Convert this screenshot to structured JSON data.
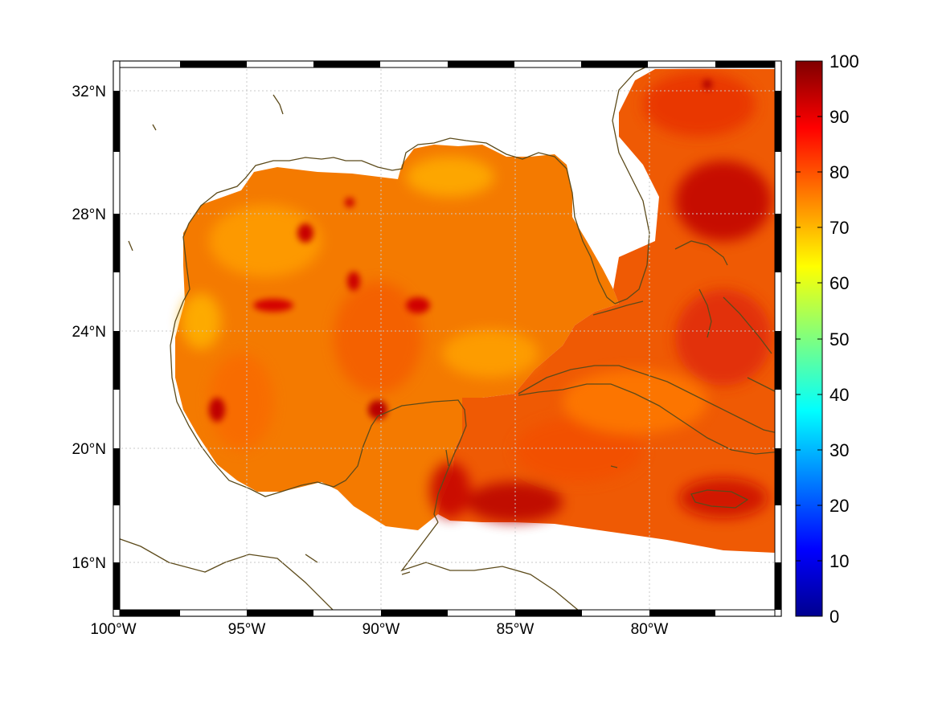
{
  "map": {
    "lon_labels": [
      "100°W",
      "95°W",
      "90°W",
      "85°W",
      "80°W"
    ],
    "lat_labels": [
      "32°N",
      "28°N",
      "24°N",
      "20°N",
      "16°N"
    ],
    "coastline_color": "#5c4a1a",
    "land_color": "#ffffff",
    "field_colors": [
      "#f47a00",
      "#fb8c00",
      "#ff9f00",
      "#ff6a00",
      "#e8270a",
      "#cc0000",
      "#a80000"
    ]
  },
  "colorbar": {
    "tick_labels": [
      "100",
      "90",
      "80",
      "70",
      "60",
      "50",
      "40",
      "30",
      "20",
      "10",
      "0"
    ],
    "colors": [
      "#7f0000",
      "#ff0000",
      "#ff7f00",
      "#ffff00",
      "#7fff7f",
      "#00ffff",
      "#007fff",
      "#0000ff",
      "#00008f"
    ]
  }
}
